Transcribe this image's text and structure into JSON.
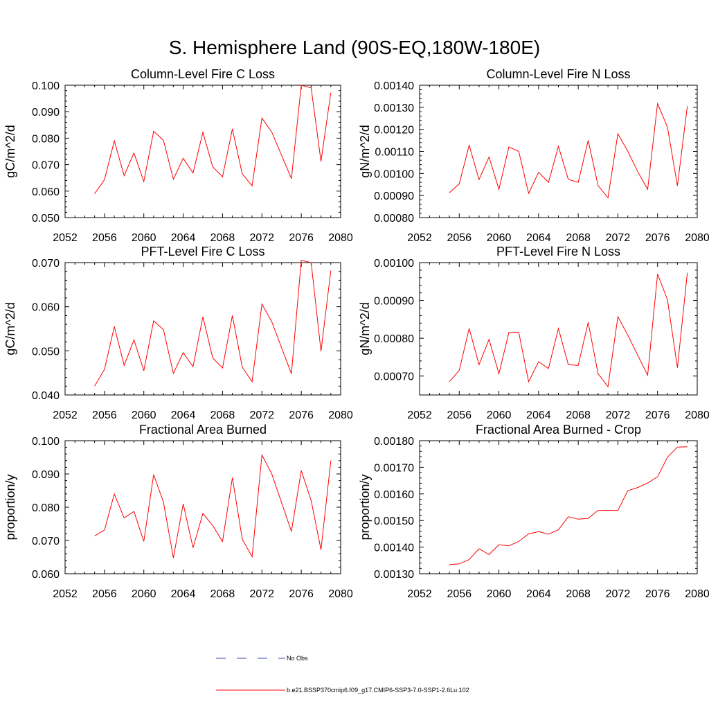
{
  "title": "S. Hemisphere Land (90S-EQ,180W-180E)",
  "colors": {
    "model": "#ff0000",
    "obs": "#3b4ba8",
    "axis": "#000000"
  },
  "legend": {
    "obs_label": "No Obs",
    "model_label": "b.e21.BSSP370cmip6.f09_g17.CMIP6-SSP3-7.0-SSP1-2.6Lu.102"
  },
  "chart_data": [
    {
      "type": "line",
      "title": "Column-Level Fire C Loss",
      "xlabel": "",
      "ylabel": "gC/m^2/d",
      "xlim": [
        2052,
        2080
      ],
      "ylim": [
        0.05,
        0.1
      ],
      "xticks": [
        "2052",
        "2056",
        "2060",
        "2064",
        "2068",
        "2072",
        "2076",
        "2080"
      ],
      "yticks": [
        "0.050",
        "0.060",
        "0.070",
        "0.080",
        "0.090",
        "0.100"
      ],
      "x": [
        2055,
        2056,
        2057,
        2058,
        2059,
        2060,
        2061,
        2062,
        2063,
        2064,
        2065,
        2066,
        2067,
        2068,
        2069,
        2070,
        2071,
        2072,
        2073,
        2075,
        2076,
        2077,
        2078,
        2079
      ],
      "series": [
        {
          "values": [
            0.059,
            0.0643,
            0.079,
            0.0658,
            0.0744,
            0.0636,
            0.0826,
            0.0792,
            0.0645,
            0.0724,
            0.0668,
            0.0822,
            0.0692,
            0.0654,
            0.0835,
            0.0665,
            0.062,
            0.0876,
            0.0823,
            0.0647,
            0.1,
            0.099,
            0.0712,
            0.0972
          ]
        }
      ]
    },
    {
      "type": "line",
      "title": "Column-Level Fire N Loss",
      "xlabel": "",
      "ylabel": "gN/m^2/d",
      "xlim": [
        2052,
        2080
      ],
      "ylim": [
        0.0008,
        0.0014
      ],
      "xticks": [
        "2052",
        "2056",
        "2060",
        "2064",
        "2068",
        "2072",
        "2076",
        "2080"
      ],
      "yticks": [
        "0.00080",
        "0.00090",
        "0.00100",
        "0.00110",
        "0.00120",
        "0.00130",
        "0.00140"
      ],
      "x": [
        2055,
        2056,
        2057,
        2058,
        2059,
        2060,
        2061,
        2062,
        2063,
        2064,
        2065,
        2066,
        2067,
        2068,
        2069,
        2070,
        2071,
        2072,
        2073,
        2074,
        2075,
        2076,
        2077,
        2078,
        2079
      ],
      "series": [
        {
          "values": [
            0.000912,
            0.000953,
            0.001128,
            0.000972,
            0.001075,
            0.000928,
            0.00112,
            0.0011,
            0.00091,
            0.001005,
            0.00096,
            0.001123,
            0.000973,
            0.00096,
            0.00115,
            0.000945,
            0.00089,
            0.00118,
            0.0011,
            0.001008,
            0.000928,
            0.001317,
            0.00121,
            0.000944,
            0.001305
          ]
        }
      ]
    },
    {
      "type": "line",
      "title": "PFT-Level Fire C Loss",
      "xlabel": "",
      "ylabel": "gC/m^2/d",
      "xlim": [
        2052,
        2080
      ],
      "ylim": [
        0.04,
        0.07
      ],
      "xticks": [
        "2052",
        "2056",
        "2060",
        "2064",
        "2068",
        "2072",
        "2076",
        "2080"
      ],
      "yticks": [
        "0.040",
        "0.050",
        "0.060",
        "0.070"
      ],
      "x": [
        2055,
        2056,
        2057,
        2058,
        2059,
        2060,
        2061,
        2062,
        2063,
        2064,
        2065,
        2066,
        2067,
        2068,
        2069,
        2070,
        2071,
        2072,
        2073,
        2075,
        2076,
        2077,
        2078,
        2079
      ],
      "series": [
        {
          "values": [
            0.042,
            0.0458,
            0.0555,
            0.0467,
            0.0525,
            0.0455,
            0.0568,
            0.0548,
            0.0449,
            0.0496,
            0.0464,
            0.0577,
            0.0484,
            0.0461,
            0.058,
            0.0463,
            0.043,
            0.0606,
            0.0566,
            0.0448,
            0.0705,
            0.07,
            0.0499,
            0.0682
          ]
        }
      ]
    },
    {
      "type": "line",
      "title": "PFT-Level Fire N Loss",
      "xlabel": "",
      "ylabel": "gN/m^2/d",
      "xlim": [
        2052,
        2080
      ],
      "ylim": [
        0.00065,
        0.001
      ],
      "xticks": [
        "2052",
        "2056",
        "2060",
        "2064",
        "2068",
        "2072",
        "2076",
        "2080"
      ],
      "yticks": [
        "0.00070",
        "0.00080",
        "0.00090",
        "0.00100"
      ],
      "x": [
        2055,
        2056,
        2057,
        2058,
        2059,
        2060,
        2061,
        2062,
        2063,
        2064,
        2065,
        2066,
        2067,
        2068,
        2069,
        2070,
        2071,
        2072,
        2073,
        2075,
        2076,
        2077,
        2078,
        2079
      ],
      "series": [
        {
          "values": [
            0.000685,
            0.000715,
            0.000826,
            0.00073,
            0.000797,
            0.000706,
            0.000815,
            0.000816,
            0.000685,
            0.000738,
            0.00072,
            0.000826,
            0.00073,
            0.000728,
            0.000842,
            0.000706,
            0.000672,
            0.000857,
            0.000808,
            0.000702,
            0.00097,
            0.000902,
            0.000722,
            0.000973
          ]
        }
      ]
    },
    {
      "type": "line",
      "title": "Fractional Area Burned",
      "xlabel": "",
      "ylabel": "proportion/y",
      "xlim": [
        2052,
        2080
      ],
      "ylim": [
        0.06,
        0.1
      ],
      "xticks": [
        "2052",
        "2056",
        "2060",
        "2064",
        "2068",
        "2072",
        "2076",
        "2080"
      ],
      "yticks": [
        "0.060",
        "0.070",
        "0.080",
        "0.090",
        "0.100"
      ],
      "x": [
        2055,
        2056,
        2057,
        2058,
        2059,
        2060,
        2061,
        2062,
        2063,
        2064,
        2065,
        2066,
        2067,
        2068,
        2069,
        2070,
        2071,
        2072,
        2073,
        2075,
        2076,
        2077,
        2078,
        2079
      ],
      "series": [
        {
          "values": [
            0.0714,
            0.0731,
            0.084,
            0.0768,
            0.0787,
            0.0697,
            0.0898,
            0.0815,
            0.0648,
            0.081,
            0.0678,
            0.0781,
            0.0745,
            0.0697,
            0.0889,
            0.0704,
            0.0651,
            0.0957,
            0.09,
            0.0727,
            0.091,
            0.082,
            0.0672,
            0.094
          ]
        }
      ]
    },
    {
      "type": "line",
      "title": "Fractional Area Burned - Crop",
      "xlabel": "",
      "ylabel": "proportion/y",
      "xlim": [
        2052,
        2080
      ],
      "ylim": [
        0.0013,
        0.0018
      ],
      "xticks": [
        "2052",
        "2056",
        "2060",
        "2064",
        "2068",
        "2072",
        "2076",
        "2080"
      ],
      "yticks": [
        "0.00130",
        "0.00140",
        "0.00150",
        "0.00160",
        "0.00170",
        "0.00180"
      ],
      "x": [
        2055,
        2056,
        2057,
        2058,
        2059,
        2060,
        2061,
        2062,
        2063,
        2064,
        2065,
        2066,
        2067,
        2068,
        2069,
        2070,
        2071,
        2072,
        2073,
        2074,
        2075,
        2076,
        2077,
        2078,
        2079
      ],
      "series": [
        {
          "values": [
            0.001334,
            0.001337,
            0.001353,
            0.001394,
            0.001372,
            0.001409,
            0.001405,
            0.001421,
            0.00145,
            0.001458,
            0.001449,
            0.001465,
            0.001514,
            0.001505,
            0.001508,
            0.001538,
            0.001538,
            0.001538,
            0.001612,
            0.001624,
            0.001641,
            0.001664,
            0.001738,
            0.001776,
            0.001777
          ]
        }
      ]
    }
  ]
}
